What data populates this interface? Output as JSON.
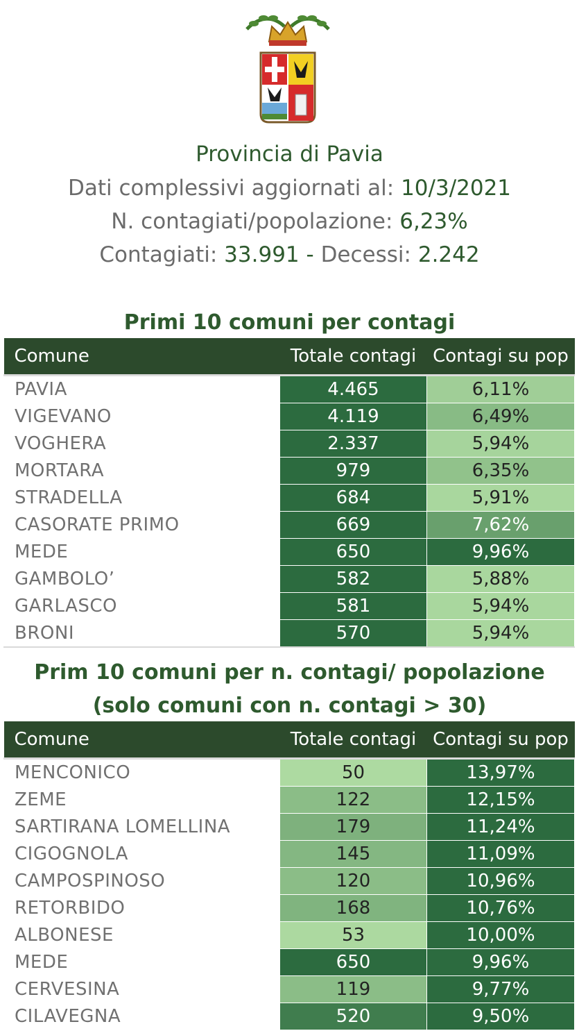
{
  "header": {
    "title": "Provincia di Pavia",
    "updated_label": "Dati complessivi aggiornati al:",
    "updated_value": "10/3/2021",
    "ratio_label": "N. contagiati/popolazione:",
    "ratio_value": "6,23%",
    "infected_label": "Contagiati:",
    "infected_value": "33.991",
    "dash": "-",
    "deaths_label": "Decessi:",
    "deaths_value": "2.242"
  },
  "colors": {
    "dark_green": "#2c6b3f",
    "header_bg": "#2c4a2c",
    "text_green": "#2e5a2e",
    "light_green": "#b4e0a6"
  },
  "chart_data": [
    {
      "type": "table",
      "title": "Primi 10 comuni per contagi",
      "columns": [
        "Comune",
        "Totale contagi",
        "Contagi su pop"
      ],
      "rows": [
        {
          "comune": "PAVIA",
          "totale": "4.465",
          "su_pop": "6,11%",
          "tot_level": 1.0,
          "pop_level": 0.15
        },
        {
          "comune": "VIGEVANO",
          "totale": "4.119",
          "su_pop": "6,49%",
          "tot_level": 1.0,
          "pop_level": 0.32
        },
        {
          "comune": "VOGHERA",
          "totale": "2.337",
          "su_pop": "5,94%",
          "tot_level": 1.0,
          "pop_level": 0.1
        },
        {
          "comune": "MORTARA",
          "totale": "979",
          "su_pop": "6,35%",
          "tot_level": 1.0,
          "pop_level": 0.26
        },
        {
          "comune": "STRADELLA",
          "totale": "684",
          "su_pop": "5,91%",
          "tot_level": 1.0,
          "pop_level": 0.08
        },
        {
          "comune": "CASORATE PRIMO",
          "totale": "669",
          "su_pop": "7,62%",
          "tot_level": 1.0,
          "pop_level": 0.55
        },
        {
          "comune": "MEDE",
          "totale": "650",
          "su_pop": "9,96%",
          "tot_level": 1.0,
          "pop_level": 1.0
        },
        {
          "comune": "GAMBOLO’",
          "totale": "582",
          "su_pop": "5,88%",
          "tot_level": 1.0,
          "pop_level": 0.08
        },
        {
          "comune": "GARLASCO",
          "totale": "581",
          "su_pop": "5,94%",
          "tot_level": 1.0,
          "pop_level": 0.08
        },
        {
          "comune": "BRONI",
          "totale": "570",
          "su_pop": "5,94%",
          "tot_level": 1.0,
          "pop_level": 0.08
        }
      ]
    },
    {
      "type": "table",
      "title": [
        "Prim 10 comuni per n. contagi/ popolazione",
        "(solo comuni con n. contagi > 30)"
      ],
      "columns": [
        "Comune",
        "Totale contagi",
        "Contagi su pop"
      ],
      "rows": [
        {
          "comune": "MENCONICO",
          "totale": "50",
          "su_pop": "13,97%",
          "tot_level": 0.05,
          "pop_level": 1.0
        },
        {
          "comune": "ZEME",
          "totale": "122",
          "su_pop": "12,15%",
          "tot_level": 0.3,
          "pop_level": 1.0
        },
        {
          "comune": "SARTIRANA LOMELLINA",
          "totale": "179",
          "su_pop": "11,24%",
          "tot_level": 0.4,
          "pop_level": 1.0
        },
        {
          "comune": "CIGOGNOLA",
          "totale": "145",
          "su_pop": "11,09%",
          "tot_level": 0.35,
          "pop_level": 1.0
        },
        {
          "comune": "CAMPOSPINOSO",
          "totale": "120",
          "su_pop": "10,96%",
          "tot_level": 0.3,
          "pop_level": 1.0
        },
        {
          "comune": "RETORBIDO",
          "totale": "168",
          "su_pop": "10,76%",
          "tot_level": 0.38,
          "pop_level": 1.0
        },
        {
          "comune": "ALBONESE",
          "totale": "53",
          "su_pop": "10,00%",
          "tot_level": 0.06,
          "pop_level": 1.0
        },
        {
          "comune": "MEDE",
          "totale": "650",
          "su_pop": "9,96%",
          "tot_level": 1.0,
          "pop_level": 1.0
        },
        {
          "comune": "CERVESINA",
          "totale": "119",
          "su_pop": "9,77%",
          "tot_level": 0.3,
          "pop_level": 1.0
        },
        {
          "comune": "CILAVEGNA",
          "totale": "520",
          "su_pop": "9,50%",
          "tot_level": 0.85,
          "pop_level": 1.0
        }
      ]
    }
  ]
}
